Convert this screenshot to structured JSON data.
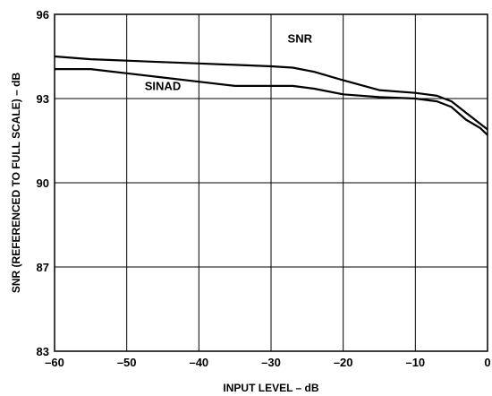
{
  "chart_data": {
    "type": "line",
    "xlabel": "INPUT LEVEL – dB",
    "ylabel": "SNR (REFERENCED TO FULL SCALE) – dB",
    "xlim": [
      -60,
      0
    ],
    "ylim": [
      83,
      96
    ],
    "x_ticks": [
      -60,
      -50,
      -40,
      -30,
      -20,
      -10,
      0
    ],
    "x_tick_labels": [
      "–60",
      "–50",
      "–40",
      "–30",
      "–20",
      "–10",
      "0"
    ],
    "y_ticks": [
      83,
      87,
      90,
      93,
      96
    ],
    "y_tick_labels": [
      "83",
      "87",
      "90",
      "93",
      "96"
    ],
    "grid": true,
    "series": [
      {
        "name": "SNR",
        "x": [
          -60,
          -55,
          -50,
          -45,
          -40,
          -35,
          -30,
          -27,
          -24,
          -20,
          -15,
          -10,
          -7,
          -5,
          -3,
          -1,
          0
        ],
        "y": [
          94.5,
          94.4,
          94.35,
          94.3,
          94.25,
          94.2,
          94.15,
          94.1,
          93.95,
          93.65,
          93.3,
          93.2,
          93.1,
          92.9,
          92.5,
          92.1,
          91.9
        ]
      },
      {
        "name": "SINAD",
        "x": [
          -60,
          -55,
          -50,
          -45,
          -40,
          -35,
          -30,
          -27,
          -24,
          -20,
          -15,
          -10,
          -7,
          -5,
          -3,
          -1,
          0
        ],
        "y": [
          94.05,
          94.05,
          93.9,
          93.75,
          93.6,
          93.45,
          93.45,
          93.45,
          93.35,
          93.15,
          93.05,
          93.0,
          92.9,
          92.7,
          92.25,
          91.95,
          91.7
        ]
      }
    ]
  }
}
